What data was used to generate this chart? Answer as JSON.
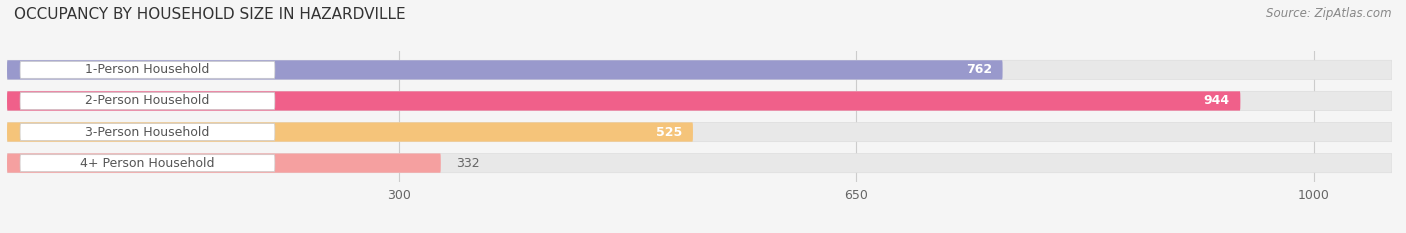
{
  "title": "OCCUPANCY BY HOUSEHOLD SIZE IN HAZARDVILLE",
  "source": "Source: ZipAtlas.com",
  "categories": [
    "1-Person Household",
    "2-Person Household",
    "3-Person Household",
    "4+ Person Household"
  ],
  "values": [
    762,
    944,
    525,
    332
  ],
  "bar_colors": [
    "#9999cc",
    "#f0608a",
    "#f5c47a",
    "#f5a0a0"
  ],
  "x_ticks": [
    300,
    650,
    1000
  ],
  "xmax": 1000,
  "background_color": "#f5f5f5",
  "bar_bg_color": "#e8e8e8",
  "label_bg_color": "#ffffff",
  "label_text_color": "#555555",
  "value_color_inside": "#ffffff",
  "value_color_outside": "#666666",
  "title_fontsize": 11,
  "label_fontsize": 9,
  "tick_fontsize": 9,
  "source_fontsize": 8.5
}
